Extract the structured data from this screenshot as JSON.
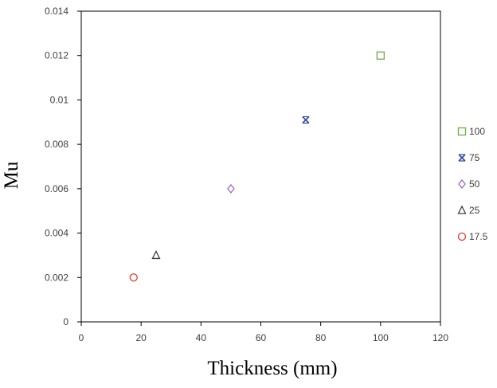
{
  "chart_data": {
    "type": "scatter",
    "title": "",
    "xlabel": "Thickness (mm)",
    "ylabel": "Mu",
    "xlim": [
      0,
      120
    ],
    "ylim": [
      0,
      0.014
    ],
    "x_ticks": [
      "0",
      "20",
      "40",
      "60",
      "80",
      "100",
      "120"
    ],
    "y_ticks": [
      "0",
      "0.002",
      "0.004",
      "0.006",
      "0.008",
      "0.01",
      "0.012",
      "0.014"
    ],
    "grid": false,
    "legend_position": "right",
    "series": [
      {
        "name": "100",
        "marker": "square",
        "color": "#70ad47",
        "points": [
          {
            "x": 100,
            "y": 0.012
          }
        ]
      },
      {
        "name": "75",
        "marker": "asterisk",
        "color": "#2e4a9a",
        "points": [
          {
            "x": 75,
            "y": 0.0091
          }
        ]
      },
      {
        "name": "50",
        "marker": "diamond",
        "color": "#9966cc",
        "points": [
          {
            "x": 50,
            "y": 0.006
          }
        ]
      },
      {
        "name": "25",
        "marker": "triangle",
        "color": "#404040",
        "points": [
          {
            "x": 25,
            "y": 0.003
          }
        ]
      },
      {
        "name": "17.5",
        "marker": "circle",
        "color": "#e03c31",
        "points": [
          {
            "x": 17.5,
            "y": 0.002
          }
        ]
      }
    ]
  }
}
